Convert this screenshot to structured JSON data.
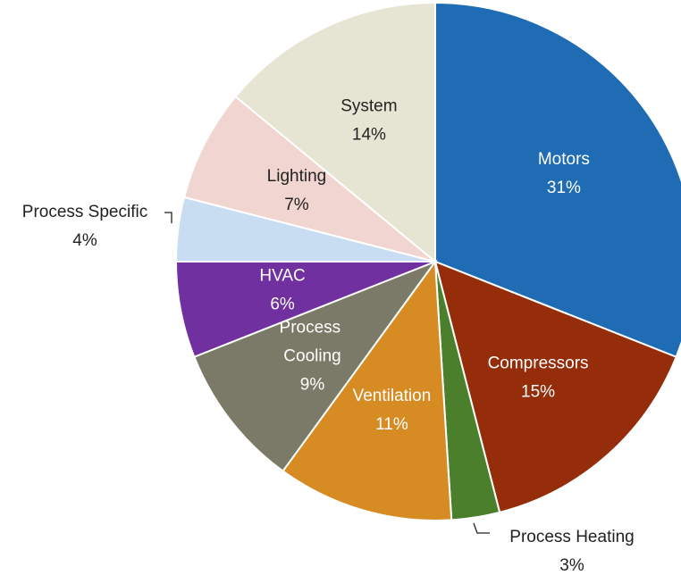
{
  "chart_data": {
    "type": "pie",
    "categories": [
      "Motors",
      "Compressors",
      "Process Heating",
      "Ventilation",
      "Process Cooling",
      "HVAC",
      "Process Specific",
      "Lighting",
      "System"
    ],
    "values": [
      31,
      15,
      3,
      11,
      9,
      6,
      4,
      7,
      14
    ],
    "value_labels": [
      "31%",
      "15%",
      "3%",
      "11%",
      "9%",
      "6%",
      "4%",
      "7%",
      "14%"
    ],
    "colors": [
      "#1f6bb4",
      "#952d0a",
      "#4b7f2b",
      "#d68b23",
      "#7b7a68",
      "#7030a0",
      "#c8ddf1",
      "#f1d5d0",
      "#e6e5d4"
    ]
  }
}
